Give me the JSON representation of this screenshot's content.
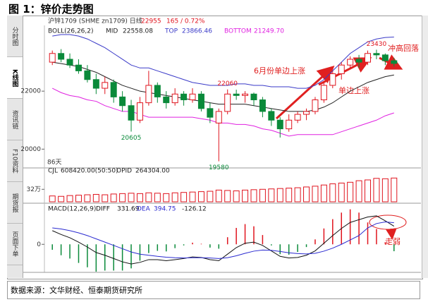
{
  "figure_title": "图 1：锌价走势图",
  "sidebar_tabs": [
    "分时图",
    "K线图",
    "资讯链",
    "F10资料",
    "期货报",
    "页面下单"
  ],
  "source": "数据来源：文华财经、恒泰期货研究所",
  "chart_data": [
    {
      "type": "candlestick",
      "instrument": "沪锌1709 (SHME zn1709) 日线",
      "last_price": "22955",
      "change": "165 / 0.72%",
      "indicator": "BOLL(26,26,2)",
      "categories": [
        null,
        null,
        null,
        null,
        null,
        null,
        null,
        null,
        null,
        null,
        null,
        null,
        null,
        null,
        null,
        null,
        null,
        null,
        null,
        null,
        null,
        null,
        null,
        null,
        null,
        null,
        null,
        null,
        null,
        null,
        null,
        null,
        null,
        null,
        null,
        null,
        null,
        null,
        null,
        null
      ],
      "open": [
        23000,
        23300,
        23100,
        22900,
        22700,
        22400,
        22100,
        22300,
        21800,
        21500,
        21000,
        21600,
        22200,
        21800,
        21600,
        21900,
        21700,
        21900,
        21400,
        20900,
        21300,
        21900,
        21850,
        21900,
        21700,
        21300,
        21000,
        20700,
        21000,
        21200,
        21300,
        21700,
        22200,
        22600,
        22900,
        23100,
        23000,
        23300,
        23250,
        23050
      ],
      "high": [
        23400,
        23450,
        23300,
        23100,
        22900,
        22600,
        22500,
        22400,
        22000,
        21700,
        21800,
        22700,
        22300,
        22000,
        22100,
        22000,
        22100,
        22000,
        21600,
        21400,
        22060,
        22050,
        22000,
        21950,
        21800,
        21400,
        21100,
        21200,
        21300,
        21400,
        21800,
        22300,
        22700,
        23000,
        23200,
        23250,
        23400,
        23430,
        23300,
        23150
      ],
      "low": [
        22900,
        23000,
        22800,
        22600,
        22300,
        21900,
        21900,
        21600,
        21300,
        20605,
        20900,
        21500,
        21600,
        21400,
        21500,
        21500,
        21600,
        21300,
        20900,
        19580,
        21200,
        21700,
        21600,
        21500,
        21100,
        20800,
        20400,
        20600,
        20900,
        21000,
        21200,
        21600,
        22100,
        22400,
        22800,
        22800,
        22900,
        23100,
        22900,
        22850
      ],
      "close": [
        23300,
        23100,
        22900,
        22700,
        22400,
        22100,
        22300,
        21800,
        21500,
        21000,
        21600,
        22200,
        21800,
        21600,
        21900,
        21700,
        21900,
        21400,
        21100,
        21300,
        21900,
        21850,
        21900,
        21700,
        21300,
        21000,
        20700,
        21000,
        21200,
        21300,
        21700,
        22200,
        22600,
        22900,
        23100,
        23000,
        23300,
        23250,
        23050,
        22955
      ],
      "up_color": "#e0141e",
      "down_color": "#0a8a3a",
      "series": [
        {
          "name": "MID",
          "legend_value": "22558.08",
          "color": "#222222",
          "values": [
            23000,
            22950,
            22900,
            22850,
            22750,
            22650,
            22500,
            22350,
            22200,
            22100,
            22000,
            21950,
            21900,
            21850,
            21800,
            21750,
            21700,
            21650,
            21600,
            21550,
            21550,
            21550,
            21550,
            21500,
            21450,
            21400,
            21350,
            21300,
            21300,
            21300,
            21350,
            21450,
            21600,
            21800,
            22000,
            22150,
            22300,
            22400,
            22500,
            22558.08
          ]
        },
        {
          "name": "TOP",
          "legend_value": "23866.46",
          "color": "#3a3ac8",
          "values": [
            23900,
            23950,
            23950,
            23900,
            23800,
            23650,
            23500,
            23300,
            23100,
            22900,
            22800,
            22800,
            22700,
            22600,
            22500,
            22400,
            22300,
            22250,
            22200,
            22200,
            22200,
            22250,
            22250,
            22200,
            22200,
            22150,
            22150,
            22150,
            22100,
            22100,
            22200,
            22400,
            22700,
            23000,
            23300,
            23500,
            23700,
            23800,
            23850,
            23866.46
          ]
        },
        {
          "name": "BOTTOM",
          "legend_value": "21249.70",
          "color": "#e020e0",
          "values": [
            22100,
            21950,
            21850,
            21800,
            21700,
            21650,
            21500,
            21400,
            21300,
            21300,
            21200,
            21100,
            21100,
            21100,
            21100,
            21100,
            21100,
            21050,
            21000,
            20900,
            20900,
            20850,
            20850,
            20800,
            20700,
            20650,
            20550,
            20450,
            20500,
            20500,
            20500,
            20500,
            20500,
            20600,
            20700,
            20800,
            20900,
            21000,
            21150,
            21249.7
          ]
        }
      ],
      "ylim": [
        19400,
        24000
      ],
      "yticks": [
        20000,
        22000
      ],
      "point_labels": [
        23430,
        22060,
        20605,
        19580
      ],
      "annotations": [
        "6月份单边上涨",
        "单边上涨",
        "冲高回落",
        "86天"
      ]
    },
    {
      "type": "bar",
      "legend": [
        "CJL",
        "608420.00(50:50)",
        "OPID",
        "264304.00"
      ],
      "categories": [
        null,
        null,
        null,
        null,
        null,
        null,
        null,
        null,
        null,
        null,
        null,
        null,
        null,
        null,
        null,
        null,
        null,
        null,
        null,
        null,
        null,
        null,
        null,
        null,
        null,
        null,
        null,
        null,
        null,
        null,
        null,
        null,
        null,
        null,
        null,
        null,
        null,
        null,
        null,
        null
      ],
      "values": [
        150000,
        140000,
        160000,
        170000,
        180000,
        190000,
        180000,
        200000,
        210000,
        220000,
        210000,
        230000,
        220000,
        210000,
        230000,
        240000,
        250000,
        260000,
        270000,
        300000,
        290000,
        280000,
        300000,
        310000,
        320000,
        330000,
        340000,
        350000,
        360000,
        380000,
        400000,
        430000,
        460000,
        480000,
        500000,
        540000,
        560000,
        600000,
        590000,
        608420
      ],
      "color": "#e0141e",
      "ylim": [
        0,
        650000
      ],
      "yticks": [
        {
          "value": 320000,
          "label": "32万"
        }
      ]
    },
    {
      "type": "macd",
      "indicator": "MACD(12,26,9)",
      "categories": [
        null,
        null,
        null,
        null,
        null,
        null,
        null,
        null,
        null,
        null,
        null,
        null,
        null,
        null,
        null,
        null,
        null,
        null,
        null,
        null,
        null,
        null,
        null,
        null,
        null,
        null,
        null,
        null,
        null,
        null,
        null,
        null,
        null,
        null,
        null,
        null,
        null,
        null,
        null,
        null
      ],
      "series": [
        {
          "name": "DIFF",
          "color": "#111111",
          "values": [
            250,
            180,
            120,
            40,
            -50,
            -150,
            -200,
            -260,
            -320,
            -360,
            -330,
            -280,
            -280,
            -300,
            -280,
            -260,
            -230,
            -240,
            -280,
            -300,
            -180,
            -60,
            20,
            40,
            -20,
            -120,
            -220,
            -250,
            -240,
            -200,
            -120,
            20,
            160,
            290,
            400,
            450,
            500,
            520,
            430,
            331.69
          ]
        },
        {
          "name": "DEA",
          "color": "#2a2ad0",
          "values": [
            300,
            280,
            250,
            210,
            160,
            100,
            40,
            -20,
            -80,
            -140,
            -180,
            -200,
            -220,
            -235,
            -245,
            -250,
            -245,
            -245,
            -250,
            -260,
            -245,
            -210,
            -165,
            -125,
            -105,
            -110,
            -130,
            -155,
            -170,
            -175,
            -165,
            -125,
            -70,
            0,
            80,
            160,
            300,
            380,
            410,
            394.75
          ]
        }
      ],
      "bars": [
        -100,
        -200,
        -260,
        -340,
        -420,
        -500,
        -480,
        -480,
        -480,
        -440,
        -300,
        -160,
        -120,
        -130,
        -70,
        -20,
        30,
        10,
        -60,
        -80,
        130,
        300,
        370,
        330,
        170,
        -20,
        -180,
        -190,
        -140,
        -50,
        90,
        290,
        460,
        580,
        640,
        580,
        400,
        280,
        40,
        -126.12
      ],
      "up_color": "#e0141e",
      "down_color": "#0a8a3a",
      "ylim": [
        -500,
        700
      ],
      "yticks": [
        0
      ],
      "annotations": [
        "走弱"
      ]
    }
  ]
}
